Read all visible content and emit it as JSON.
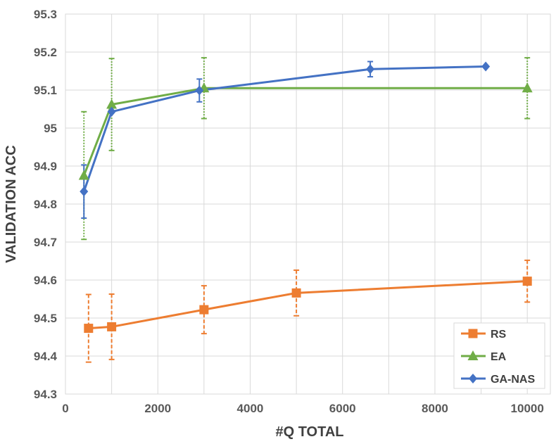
{
  "chart_data": {
    "type": "line",
    "xlabel": "#Q TOTAL",
    "ylabel": "VALIDATION ACC",
    "xlim": [
      0,
      10500
    ],
    "ylim": [
      94.3,
      95.3
    ],
    "xticks": [
      0,
      2000,
      4000,
      6000,
      8000,
      10000
    ],
    "yticks": [
      94.3,
      94.4,
      94.5,
      94.6,
      94.7,
      94.8,
      94.9,
      95,
      95.1,
      95.2,
      95.3
    ],
    "grid": true,
    "legend_position": "bottom-right",
    "series": [
      {
        "name": "RS",
        "color": "#ED7D31",
        "marker": "square",
        "x": [
          500,
          1000,
          3000,
          5000,
          10000
        ],
        "y": [
          94.473,
          94.477,
          94.522,
          94.566,
          94.597
        ],
        "error": [
          0.089,
          0.086,
          0.063,
          0.06,
          0.055
        ],
        "error_style": "dashed"
      },
      {
        "name": "EA",
        "color": "#70AD47",
        "marker": "triangle",
        "x": [
          400,
          1000,
          3000,
          10000
        ],
        "y": [
          94.875,
          95.062,
          95.105,
          95.105
        ],
        "error": [
          0.168,
          0.121,
          0.08,
          0.08
        ],
        "error_style": "dotted"
      },
      {
        "name": "GA-NAS",
        "color": "#4472C4",
        "marker": "diamond",
        "x": [
          400,
          1000,
          2900,
          6600,
          9100
        ],
        "y": [
          94.833,
          95.043,
          95.099,
          95.155,
          95.162
        ],
        "error": [
          0.07,
          0.0,
          0.03,
          0.02,
          0.0
        ],
        "error_style": "solid"
      }
    ]
  }
}
